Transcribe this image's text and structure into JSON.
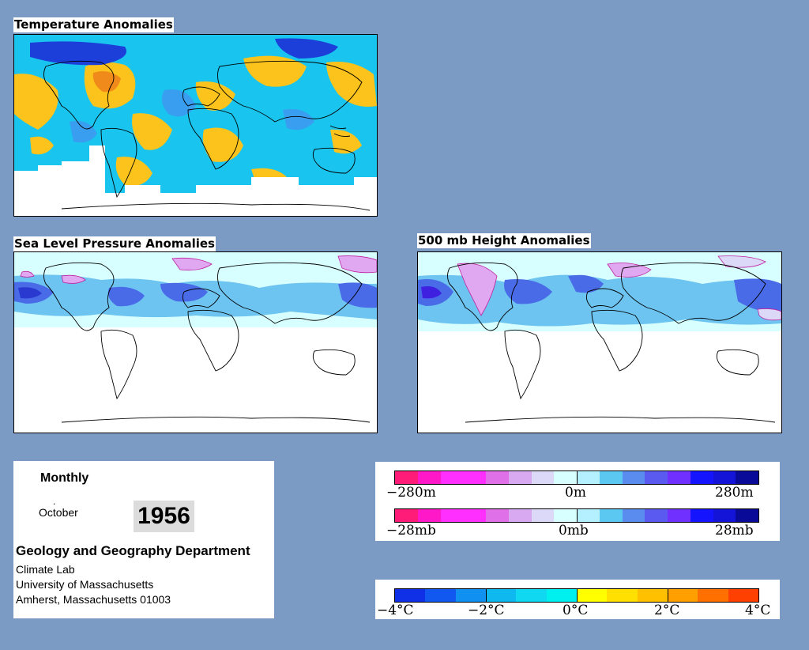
{
  "panels": {
    "temperature": {
      "title": "Temperature Anomalies"
    },
    "slp": {
      "title": "Sea Level Pressure Anomalies"
    },
    "height": {
      "title": "500 mb Height Anomalies"
    }
  },
  "info": {
    "frequency": "Monthly",
    "month": "October",
    "year": "1956",
    "department": "Geology and Geography Department",
    "lab": "Climate Lab",
    "university": "University of Massachusetts",
    "address": "Amherst, Massachusetts 01003"
  },
  "legends": {
    "height": {
      "labels": [
        "−280m",
        "0m",
        "280m"
      ],
      "colors": [
        "#ff1c78",
        "#ff18c8",
        "#ff30ff",
        "#ff30ff",
        "#e070e8",
        "#d8a8f0",
        "#dcd8f8",
        "#d8ffff",
        "#b4f0ff",
        "#5ac8f0",
        "#5a8cf0",
        "#5a5af0",
        "#7030ff",
        "#1414ff",
        "#1414d8",
        "#0a0a98"
      ]
    },
    "pressure": {
      "labels": [
        "−28mb",
        "0mb",
        "28mb"
      ],
      "colors": [
        "#ff1c78",
        "#ff18c8",
        "#ff30ff",
        "#ff30ff",
        "#e070e8",
        "#d8a8f0",
        "#dcd8f8",
        "#d8ffff",
        "#b4f0ff",
        "#5ac8f0",
        "#5a8cf0",
        "#5a5af0",
        "#7030ff",
        "#1414ff",
        "#1414d8",
        "#0a0a98"
      ]
    },
    "temperature": {
      "labels": [
        "−4°C",
        "−2°C",
        "0°C",
        "2°C",
        "4°C"
      ],
      "colors": [
        "#1030e8",
        "#1058f0",
        "#1090f0",
        "#10b8f0",
        "#10d8f0",
        "#00f0f0",
        "#ffff00",
        "#ffe000",
        "#ffc000",
        "#ffa000",
        "#ff7000",
        "#ff4000"
      ]
    }
  },
  "colors": {
    "background": "#7b9bc5",
    "temp_cold": "#19c4ef",
    "temp_cool": "#3a9ef0",
    "temp_very_cold": "#1b3fd8",
    "temp_warm": "#fbc31b",
    "temp_hot": "#f08a1a",
    "neg_anomaly_light": "#dcd8f8",
    "pos_anomaly_light": "#cceeff",
    "pos_anomaly_mid": "#6ec4f0",
    "pos_anomaly_strong": "#4a6be8"
  }
}
